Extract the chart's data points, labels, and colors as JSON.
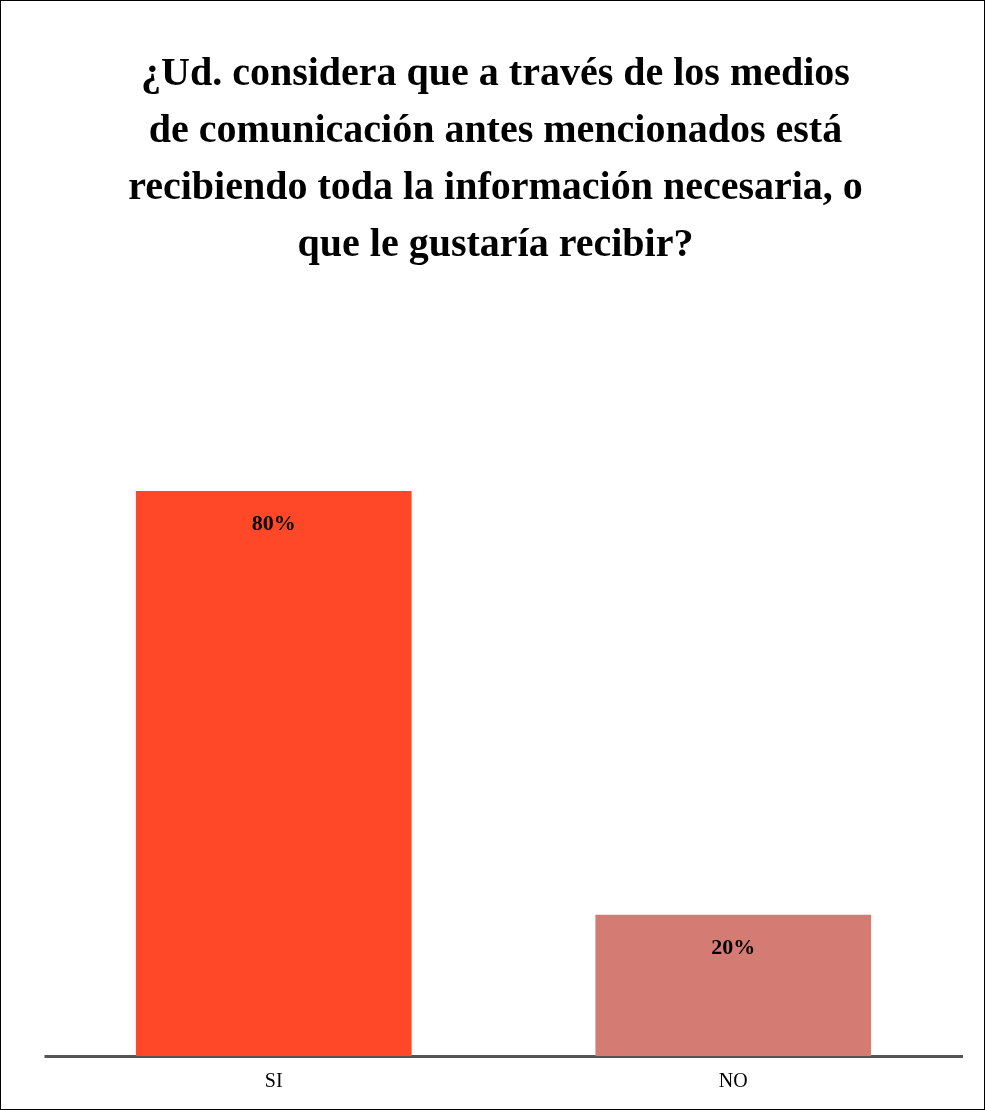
{
  "chart_data": {
    "type": "bar",
    "title": "¿Ud. considera que a través de los medios de comunicación antes mencionados está recibiendo toda la información necesaria, o que le gustaría recibir?",
    "categories": [
      "SI",
      "NO"
    ],
    "values": [
      80,
      20
    ],
    "colors": [
      "#ff4828",
      "#d47c74"
    ],
    "value_labels": [
      "80%",
      "20%"
    ]
  }
}
